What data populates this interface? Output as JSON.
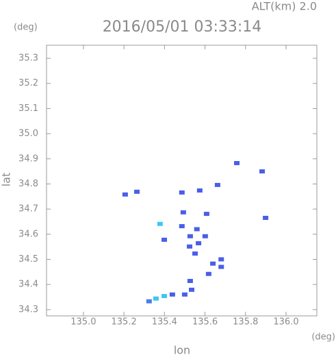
{
  "chart_data": {
    "type": "scatter",
    "title": "2016/05/01 03:33:14",
    "subtitle": "ALT(km) 2.0",
    "y_unit": "(deg)",
    "x_unit": "(deg)",
    "x_label": "lon",
    "y_label": "lat",
    "xlim": [
      134.818,
      136.152
    ],
    "ylim": [
      34.275,
      35.352
    ],
    "xticks": [
      {
        "value": 135,
        "label": "135.0"
      },
      135.2,
      135.4,
      135.6,
      135.8,
      {
        "value": 136,
        "label": "136.0"
      }
    ],
    "yticks": [
      34.3,
      34.4,
      34.5,
      34.6,
      34.7,
      34.8,
      34.9,
      {
        "value": 35,
        "label": "35.0"
      },
      35.1,
      35.2,
      35.3
    ],
    "x": [
      135.206,
      135.264,
      135.486,
      135.574,
      135.662,
      135.757,
      135.882,
      135.899,
      135.493,
      135.608,
      135.378,
      135.486,
      135.527,
      135.568,
      135.601,
      135.524,
      135.399,
      135.551,
      135.639,
      135.618,
      135.527,
      135.534,
      135.439,
      135.399,
      135.358,
      135.324,
      135.5,
      135.68,
      135.68,
      135.56
    ],
    "values": [
      34.758,
      34.769,
      34.766,
      34.774,
      34.796,
      34.883,
      34.85,
      34.665,
      34.687,
      34.681,
      34.641,
      34.632,
      34.592,
      34.564,
      34.592,
      34.551,
      34.578,
      34.523,
      34.483,
      34.442,
      34.414,
      34.379,
      34.36,
      34.354,
      34.344,
      34.333,
      34.36,
      34.47,
      34.5,
      34.62
    ],
    "colors": [
      "#4a5ee8",
      "#4a5ee8",
      "#4a5ee8",
      "#4a5ee8",
      "#4a5ee8",
      "#4a5ee8",
      "#4a5ee8",
      "#4a5ee8",
      "#4a5ee8",
      "#4a5ee8",
      "#3cc8f0",
      "#4a5ee8",
      "#4a5ee8",
      "#4a5ee8",
      "#4a5ee8",
      "#4a5ee8",
      "#4a5ee8",
      "#4a5ee8",
      "#4a5ee8",
      "#4a5ee8",
      "#4a5ee8",
      "#4a5ee8",
      "#4a5ee8",
      "#3cc8f0",
      "#3cc8f0",
      "#4a7ee8",
      "#4a5ee8",
      "#4a5ee8",
      "#4a5ee8",
      "#4a5ee8"
    ]
  }
}
